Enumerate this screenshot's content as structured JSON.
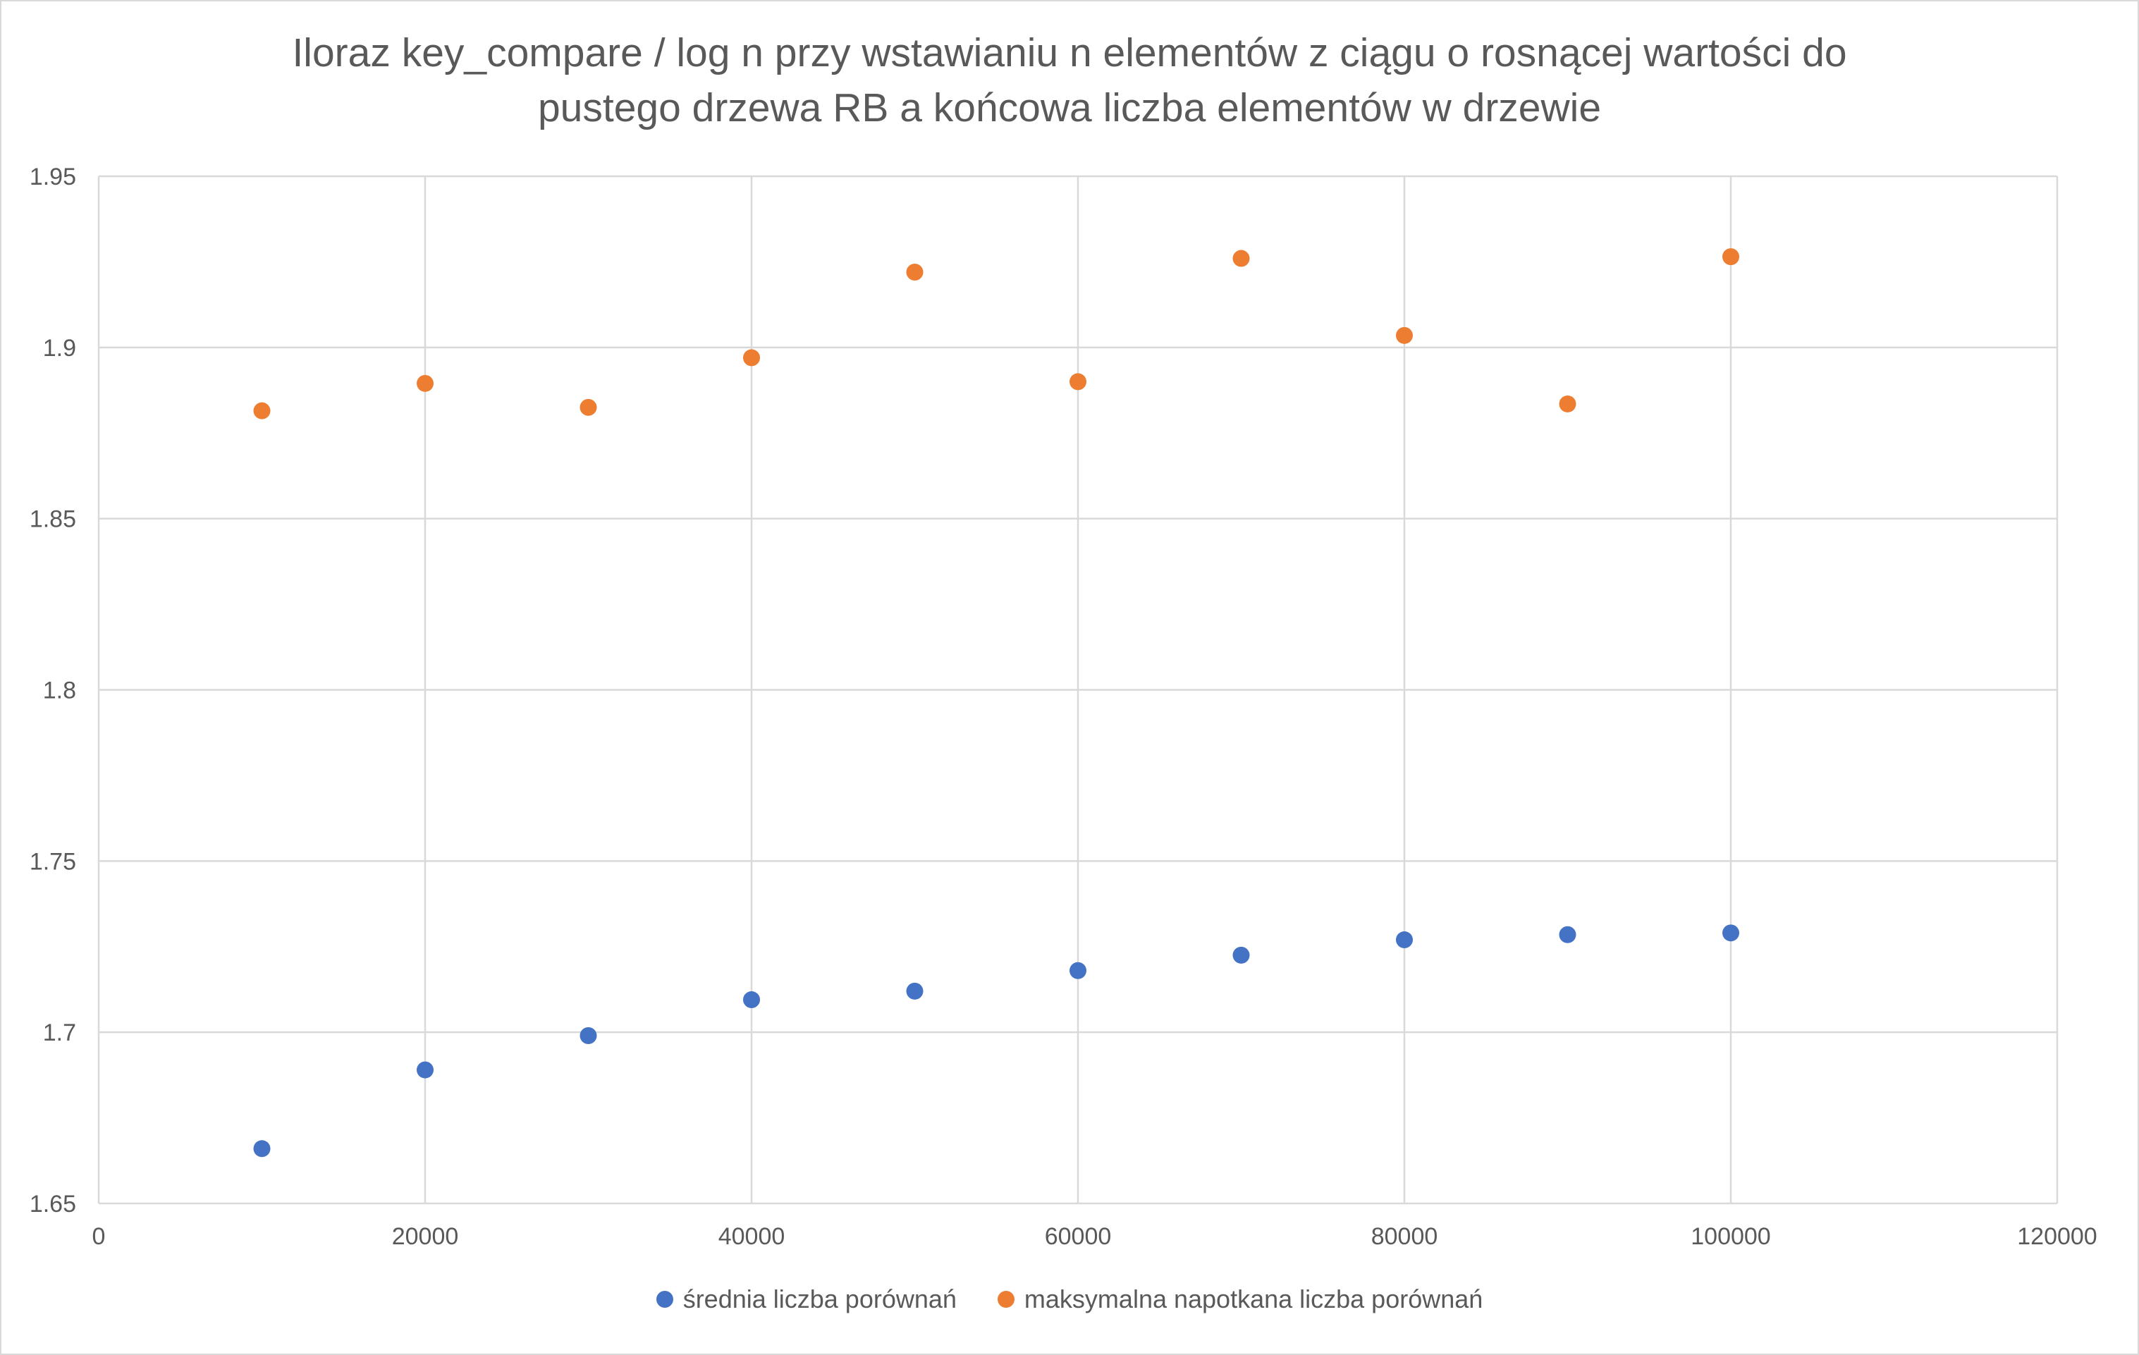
{
  "chart_data": {
    "type": "scatter",
    "title": "Iloraz key_compare / log n przy wstawianiu n elementów z ciągu o rosnącej wartości do\npustego drzewa RB a końcowa liczba elementów w drzewie",
    "xlabel": "",
    "ylabel": "",
    "xlim": [
      0,
      120000
    ],
    "ylim": [
      1.65,
      1.95
    ],
    "x_ticks": [
      "0",
      "20000",
      "40000",
      "60000",
      "80000",
      "100000",
      "120000"
    ],
    "y_ticks": [
      "1.65",
      "1.7",
      "1.75",
      "1.8",
      "1.85",
      "1.9",
      "1.95"
    ],
    "grid": true,
    "legend_position": "bottom",
    "x": [
      10000,
      20000,
      30000,
      40000,
      50000,
      60000,
      70000,
      80000,
      90000,
      100000
    ],
    "series": [
      {
        "name": "średnia liczba porównań",
        "color": "#4472c4",
        "values": [
          1.666,
          1.689,
          1.699,
          1.7095,
          1.712,
          1.718,
          1.7225,
          1.727,
          1.7285,
          1.729
        ]
      },
      {
        "name": "maksymalna napotkana liczba porównań",
        "color": "#ed7d31",
        "values": [
          1.8815,
          1.8895,
          1.8825,
          1.897,
          1.922,
          1.89,
          1.926,
          1.9035,
          1.8835,
          1.9265
        ]
      }
    ]
  }
}
